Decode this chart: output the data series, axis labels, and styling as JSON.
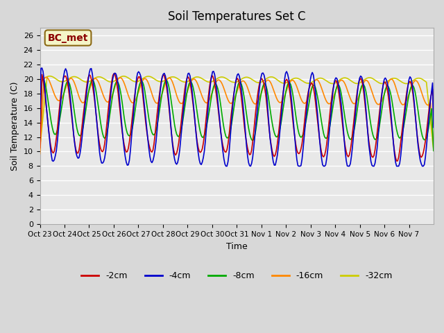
{
  "title": "Soil Temperatures Set C",
  "xlabel": "Time",
  "ylabel": "Soil Temperature (C)",
  "ylim": [
    0,
    27
  ],
  "yticks": [
    0,
    2,
    4,
    6,
    8,
    10,
    12,
    14,
    16,
    18,
    20,
    22,
    24,
    26
  ],
  "xtick_labels": [
    "Oct 23",
    "Oct 24",
    "Oct 25",
    "Oct 26",
    "Oct 27",
    "Oct 28",
    "Oct 29",
    "Oct 30",
    "Oct 31",
    "Nov 1",
    "Nov 2",
    "Nov 3",
    "Nov 4",
    "Nov 5",
    "Nov 6",
    "Nov 7"
  ],
  "annotation_text": "BC_met",
  "colors": {
    "-2cm": "#cc0000",
    "-4cm": "#0000cc",
    "-8cm": "#00aa00",
    "-16cm": "#ff8800",
    "-32cm": "#cccc00"
  },
  "legend_labels": [
    "-2cm",
    "-4cm",
    "-8cm",
    "-16cm",
    "-32cm"
  ],
  "n_days": 16,
  "n_pts_per_day": 24
}
